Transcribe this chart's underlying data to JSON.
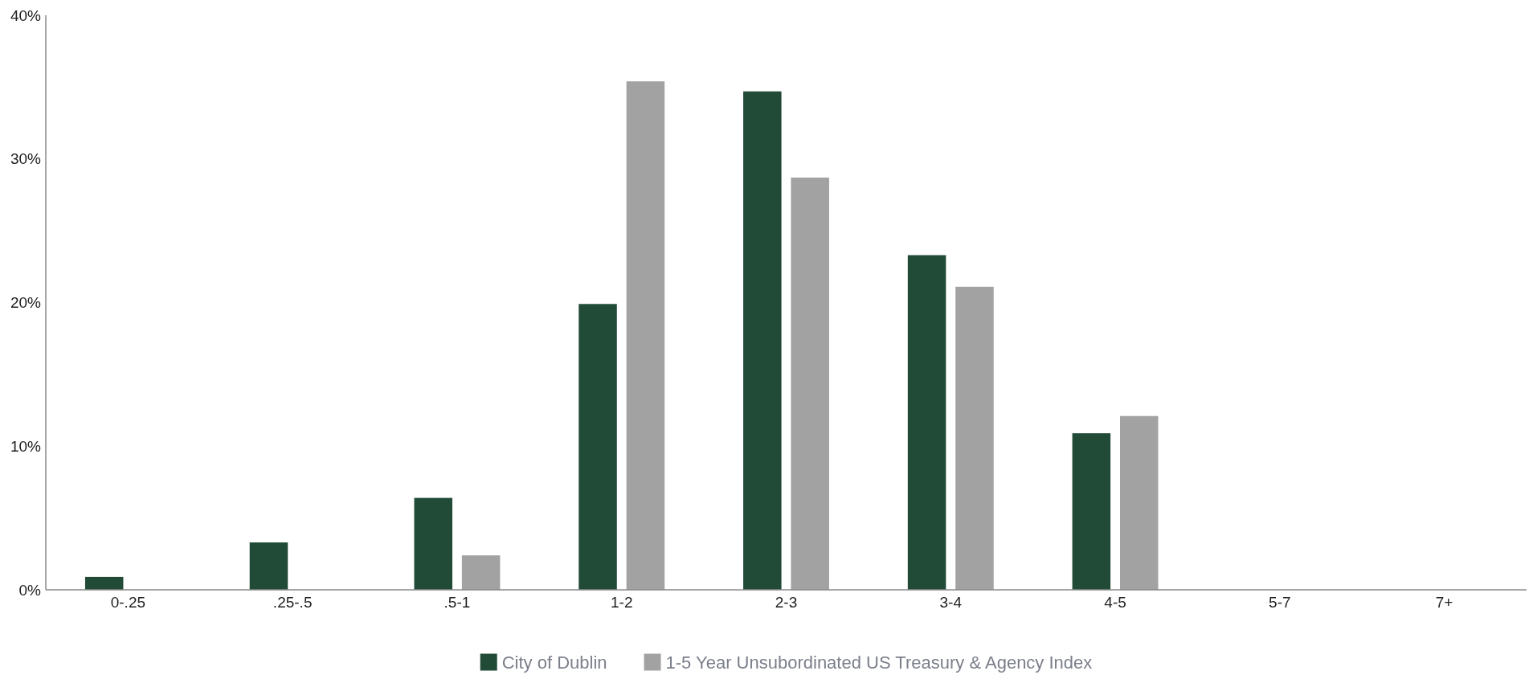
{
  "chart_data": {
    "type": "bar",
    "categories": [
      "0-.25",
      ".25-.5",
      ".5-1",
      "1-2",
      "2-3",
      "3-4",
      "4-5",
      "5-7",
      "7+"
    ],
    "series": [
      {
        "name": "City of Dublin",
        "color": "#214a37",
        "values": [
          0.9,
          3.3,
          6.4,
          19.9,
          34.7,
          23.3,
          10.9,
          null,
          null
        ]
      },
      {
        "name": "1-5 Year Unsubordinated US Treasury & Agency Index",
        "color": "#a2a2a2",
        "values": [
          null,
          null,
          2.4,
          35.4,
          28.7,
          21.1,
          12.1,
          null,
          null
        ]
      }
    ],
    "ylim": [
      0,
      40
    ],
    "yticks": [
      {
        "value": 0,
        "label": "0%"
      },
      {
        "value": 10,
        "label": "10%"
      },
      {
        "value": 20,
        "label": "20%"
      },
      {
        "value": 30,
        "label": "30%"
      },
      {
        "value": 40,
        "label": "40%"
      }
    ],
    "legend": "bottom"
  }
}
